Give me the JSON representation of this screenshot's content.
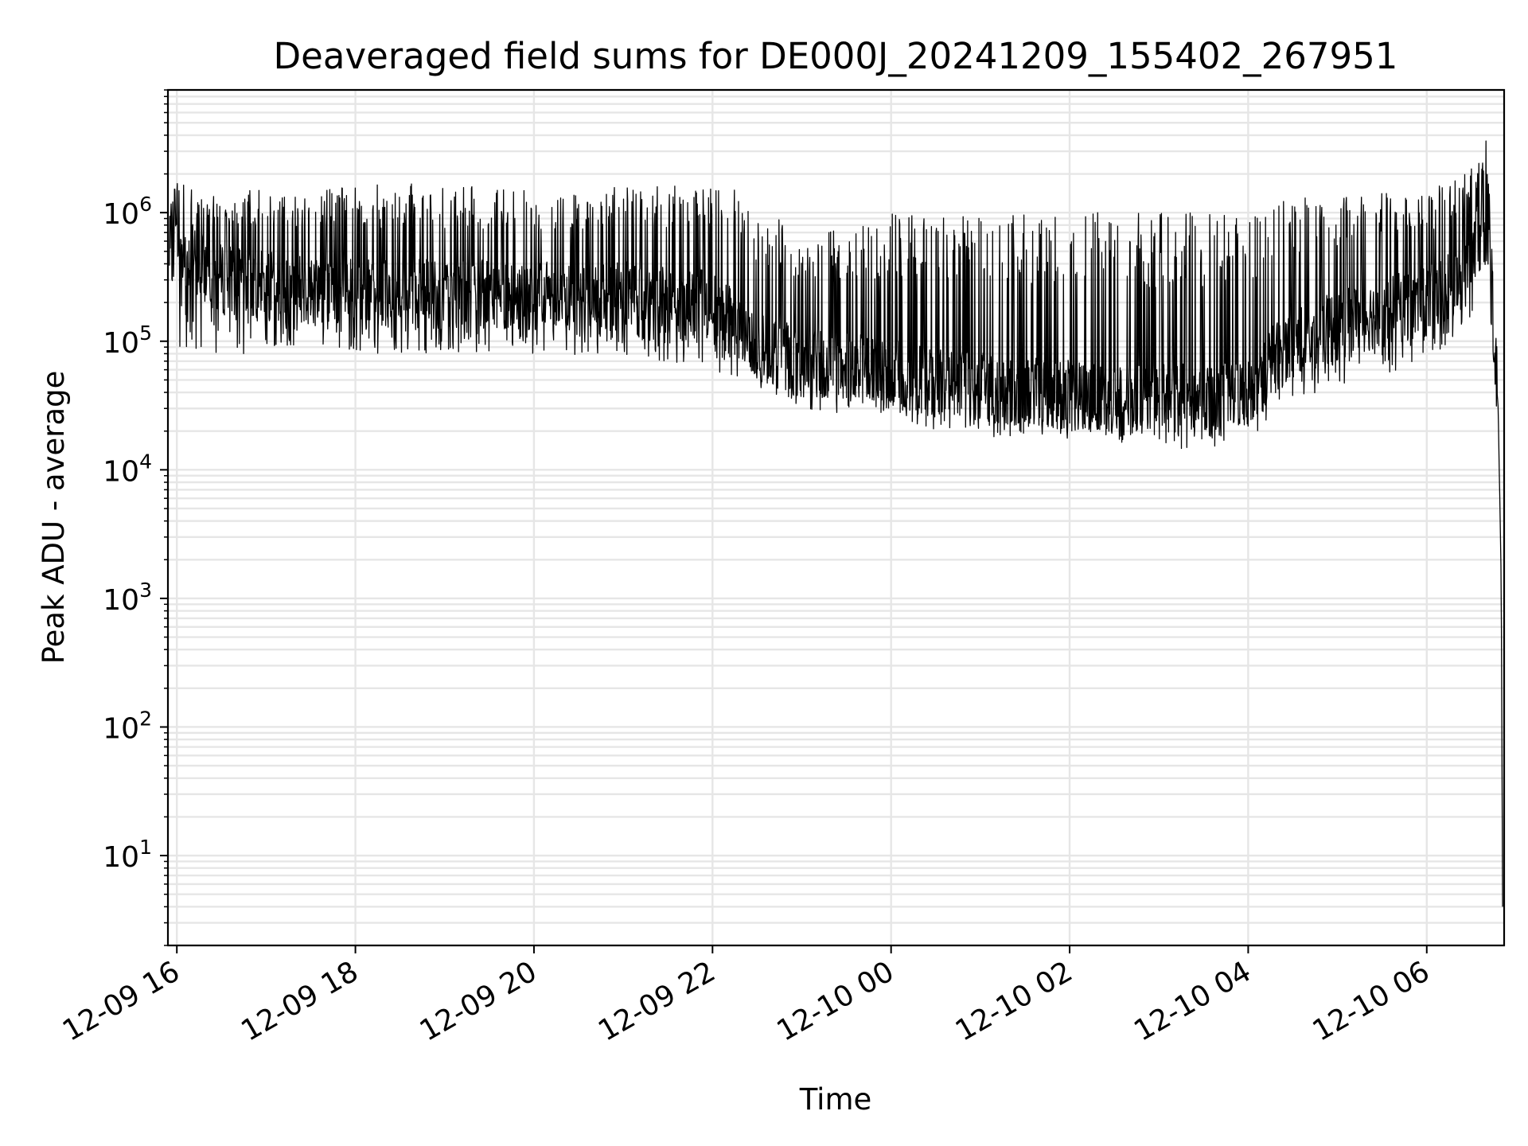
{
  "chart_data": {
    "type": "line",
    "title": "Deaveraged field sums for DE000J_20241209_155402_267951",
    "xlabel": "Time",
    "ylabel": "Peak ADU - average",
    "y_scale": "log",
    "ylim": [
      2,
      9000000
    ],
    "xlim": [
      "2024-12-09 15:54",
      "2024-12-10 06:52"
    ],
    "grid": true,
    "line_color": "#000000",
    "grid_color": "#e6e6e6",
    "x_ticks": [
      {
        "value": "2024-12-09 16:00",
        "label": "12-09 16"
      },
      {
        "value": "2024-12-09 18:00",
        "label": "12-09 18"
      },
      {
        "value": "2024-12-09 20:00",
        "label": "12-09 20"
      },
      {
        "value": "2024-12-09 22:00",
        "label": "12-09 22"
      },
      {
        "value": "2024-12-10 00:00",
        "label": "12-10 00"
      },
      {
        "value": "2024-12-10 02:00",
        "label": "12-10 02"
      },
      {
        "value": "2024-12-10 04:00",
        "label": "12-10 04"
      },
      {
        "value": "2024-12-10 06:00",
        "label": "12-10 06"
      }
    ],
    "y_ticks": [
      {
        "value": 10,
        "base": "10",
        "exp": "1"
      },
      {
        "value": 100,
        "base": "10",
        "exp": "2"
      },
      {
        "value": 1000,
        "base": "10",
        "exp": "3"
      },
      {
        "value": 10000,
        "base": "10",
        "exp": "4"
      },
      {
        "value": 100000,
        "base": "10",
        "exp": "5"
      },
      {
        "value": 1000000,
        "base": "10",
        "exp": "6"
      }
    ],
    "series": [
      {
        "x": [
          "2024-12-09 15:55",
          "2024-12-09 16:00",
          "2024-12-09 16:10",
          "2024-12-09 16:20",
          "2024-12-09 16:30",
          "2024-12-09 16:45",
          "2024-12-09 17:00",
          "2024-12-09 17:15",
          "2024-12-09 17:30",
          "2024-12-09 17:45",
          "2024-12-09 18:00",
          "2024-12-09 18:30",
          "2024-12-09 19:00",
          "2024-12-09 19:30",
          "2024-12-09 20:00",
          "2024-12-09 20:30",
          "2024-12-09 21:00",
          "2024-12-09 21:30",
          "2024-12-09 22:00",
          "2024-12-09 22:15",
          "2024-12-09 22:30",
          "2024-12-09 22:45",
          "2024-12-09 23:00",
          "2024-12-09 23:30",
          "2024-12-10 00:00",
          "2024-12-10 00:30",
          "2024-12-10 01:00",
          "2024-12-10 01:30",
          "2024-12-10 02:00",
          "2024-12-10 02:30",
          "2024-12-10 03:00",
          "2024-12-10 03:30",
          "2024-12-10 04:00",
          "2024-12-10 04:15",
          "2024-12-10 04:30",
          "2024-12-10 05:00",
          "2024-12-10 05:30",
          "2024-12-10 06:00",
          "2024-12-10 06:20",
          "2024-12-10 06:30",
          "2024-12-10 06:40",
          "2024-12-10 06:45",
          "2024-12-10 06:48",
          "2024-12-10 06:50",
          "2024-12-10 06:51"
        ],
        "values": [
          500000,
          600000,
          450000,
          350000,
          300000,
          280000,
          270000,
          260000,
          250000,
          240000,
          230000,
          230000,
          230000,
          230000,
          230000,
          220000,
          220000,
          210000,
          190000,
          130000,
          90000,
          80000,
          70000,
          65000,
          55000,
          50000,
          45000,
          40000,
          38000,
          35000,
          35000,
          36000,
          40000,
          70000,
          100000,
          130000,
          170000,
          200000,
          280000,
          500000,
          800000,
          120000,
          30000,
          1500,
          4
        ],
        "upper": [
          1000000,
          2000000,
          1500000,
          1300000,
          1400000,
          1500000,
          1600000,
          1600000,
          1500000,
          1600000,
          1600000,
          1700000,
          1600000,
          1600000,
          1600000,
          1500000,
          1600000,
          1600000,
          1700000,
          1500000,
          1000000,
          900000,
          700000,
          800000,
          1000000,
          1000000,
          1000000,
          1000000,
          1000000,
          1000000,
          1000000,
          1000000,
          1000000,
          1200000,
          1300000,
          1400000,
          1500000,
          1500000,
          1800000,
          2200000,
          4500000,
          300000,
          60000,
          3500,
          4
        ],
        "lower": [
          100000,
          80000,
          70000,
          70000,
          70000,
          80000,
          90000,
          90000,
          90000,
          90000,
          80000,
          80000,
          80000,
          80000,
          80000,
          70000,
          70000,
          70000,
          60000,
          50000,
          40000,
          35000,
          30000,
          27000,
          25000,
          20000,
          18000,
          17000,
          17000,
          16000,
          14000,
          15000,
          16000,
          25000,
          35000,
          45000,
          55000,
          70000,
          100000,
          150000,
          250000,
          80000,
          20000,
          500,
          4
        ]
      }
    ]
  }
}
